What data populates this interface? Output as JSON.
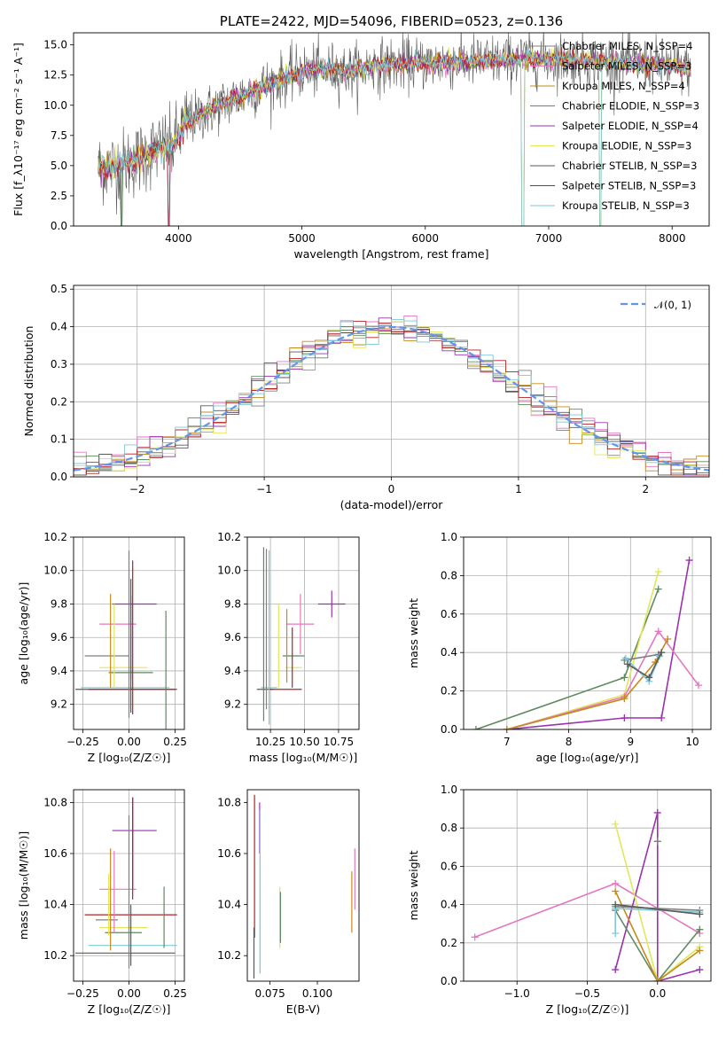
{
  "colors": {
    "series": [
      "#808080",
      "#e377c2",
      "#c58a1b",
      "#5f8a5f",
      "#9b30b0",
      "#e2e65a",
      "#5a5a5a",
      "#b22222",
      "#7ec8d6"
    ],
    "gauss": "#6495ed",
    "grid": "#b0b0b0"
  },
  "chart_data": [
    {
      "id": "spectrum",
      "type": "line",
      "title": "PLATE=2422, MJD=54096, FIBERID=0523, z=0.136",
      "xlabel": "wavelength [Angstrom, rest frame]",
      "ylabel": "Flux [f_λ10⁻¹⁷ erg cm⁻² s⁻¹ A⁻¹]",
      "xlim": [
        3150,
        8300
      ],
      "ylim": [
        0,
        16
      ],
      "xticks": [
        4000,
        5000,
        6000,
        7000,
        8000
      ],
      "xtick_labels": [
        "4000",
        "5000",
        "6000",
        "7000",
        "8000"
      ],
      "yticks": [
        0,
        2.5,
        5,
        7.5,
        10,
        12.5,
        15
      ],
      "ytick_labels": [
        "0.0",
        "2.5",
        "5.0",
        "7.5",
        "10.0",
        "12.5",
        "15.0"
      ],
      "grid": false,
      "legend_position": "top-right",
      "series_names": [
        "Chabrier MILES, N_SSP=4",
        "Salpeter MILES, N_SSP=3",
        "Kroupa MILES, N_SSP=4",
        "Chabrier ELODIE, N_SSP=3",
        "Salpeter ELODIE, N_SSP=4",
        "Kroupa ELODIE, N_SSP=3",
        "Chabrier STELIB, N_SSP=3",
        "Salpeter STELIB, N_SSP=3",
        "Kroupa STELIB, N_SSP=3"
      ],
      "continuum": {
        "x": [
          3350,
          3450,
          3550,
          3650,
          3750,
          3850,
          3950,
          4050,
          4200,
          4400,
          4600,
          4800,
          5000,
          5200,
          5400,
          5600,
          5800,
          6000,
          6300,
          6600,
          6900,
          7200,
          7500,
          7800,
          8000,
          8150
        ],
        "y": [
          4.8,
          4.9,
          5.1,
          5.4,
          6.0,
          6.5,
          6.5,
          8.5,
          9.3,
          10.3,
          11.2,
          12.0,
          12.8,
          13.0,
          12.8,
          13.3,
          13.4,
          13.5,
          13.6,
          13.7,
          13.9,
          13.8,
          13.6,
          13.4,
          13.2,
          13.0
        ]
      },
      "drops_x": [
        3540,
        3920,
        6790,
        7420
      ]
    },
    {
      "id": "residuals",
      "type": "line",
      "xlabel": "(data-model)/error",
      "ylabel": "Normed distribution",
      "xlim": [
        -2.5,
        2.5
      ],
      "ylim": [
        0,
        0.51
      ],
      "xticks": [
        -2,
        -1,
        0,
        1,
        2
      ],
      "xtick_labels": [
        "−2",
        "−1",
        "0",
        "1",
        "2"
      ],
      "yticks": [
        0,
        0.1,
        0.2,
        0.3,
        0.4,
        0.5
      ],
      "ytick_labels": [
        "0.0",
        "0.1",
        "0.2",
        "0.3",
        "0.4",
        "0.5"
      ],
      "grid": true,
      "legend_position": "top-right",
      "gauss_label": "𝒩(0, 1)",
      "bin_width": 0.1,
      "bin_start": -2.5
    },
    {
      "id": "age_vs_Z",
      "type": "scatter",
      "xlabel": "Z [log₁₀(Z/Z☉)]",
      "ylabel": "age  [log₁₀(age/yr)]",
      "xlim": [
        -0.3,
        0.3
      ],
      "ylim": [
        9.05,
        10.2
      ],
      "xticks": [
        -0.25,
        0,
        0.25
      ],
      "xtick_labels": [
        "−0.25",
        "0.00",
        "0.25"
      ],
      "yticks": [
        9.2,
        9.4,
        9.6,
        9.8,
        10.0,
        10.2
      ],
      "ytick_labels": [
        "9.2",
        "9.4",
        "9.6",
        "9.8",
        "10.0",
        "10.2"
      ],
      "grid": true,
      "points": [
        {
          "x": -0.02,
          "y": 9.29,
          "xerr": 0.27,
          "yerr": 0.0,
          "c": 6
        },
        {
          "x": 0.02,
          "y": 9.29,
          "xerr": 0.24,
          "yerr": 0.0,
          "c": 7
        },
        {
          "x": -0.02,
          "y": 9.3,
          "xerr": 0.24,
          "yerr": 0.0,
          "c": 8
        },
        {
          "x": -0.12,
          "y": 9.49,
          "xerr": 0.12,
          "yerr": 0.0,
          "c": 0
        },
        {
          "x": -0.03,
          "y": 9.42,
          "xerr": 0.13,
          "yerr": 0.0,
          "c": 5
        },
        {
          "x": 0.01,
          "y": 9.39,
          "xerr": 0.12,
          "yerr": 0.0,
          "c": 3
        },
        {
          "x": -0.06,
          "y": 9.68,
          "xerr": 0.1,
          "yerr": 0.0,
          "c": 1
        },
        {
          "x": 0.03,
          "y": 9.8,
          "xerr": 0.12,
          "yerr": 0.0,
          "c": 4
        },
        {
          "x": 0.01,
          "y": 9.6,
          "xerr": 0.0,
          "yerr": 0.25,
          "c": 4
        },
        {
          "x": 0.0,
          "y": 9.62,
          "xerr": 0.0,
          "yerr": 0.5,
          "c": 0
        },
        {
          "x": 0.02,
          "y": 9.6,
          "xerr": 0.0,
          "yerr": 0.46,
          "c": 7
        },
        {
          "x": 0.2,
          "y": 9.36,
          "xerr": 0.0,
          "yerr": 0.4,
          "c": 3
        },
        {
          "x": -0.1,
          "y": 9.58,
          "xerr": 0.0,
          "yerr": 0.28,
          "c": 2
        },
        {
          "x": -0.08,
          "y": 9.55,
          "xerr": 0.0,
          "yerr": 0.25,
          "c": 5
        },
        {
          "x": 0.01,
          "y": 9.55,
          "xerr": 0.0,
          "yerr": 0.4,
          "c": 6
        }
      ]
    },
    {
      "id": "age_vs_mass",
      "type": "scatter",
      "xlabel": "mass [log₁₀(M/M☉)]",
      "ylabel": "",
      "xlim": [
        10.08,
        10.9
      ],
      "ylim": [
        9.05,
        10.2
      ],
      "xticks": [
        10.25,
        10.5,
        10.75
      ],
      "xtick_labels": [
        "10.25",
        "10.50",
        "10.75"
      ],
      "yticks": [
        9.2,
        9.4,
        9.6,
        9.8,
        10.0,
        10.2
      ],
      "ytick_labels": [
        "9.2",
        "9.4",
        "9.6",
        "9.8",
        "10.0",
        "10.2"
      ],
      "grid": true,
      "points": [
        {
          "x": 10.21,
          "y": 9.29,
          "xerr": 0.06,
          "yerr": 0.0,
          "c": 6
        },
        {
          "x": 10.36,
          "y": 9.29,
          "xerr": 0.12,
          "yerr": 0.0,
          "c": 7
        },
        {
          "x": 10.24,
          "y": 9.3,
          "xerr": 0.06,
          "yerr": 0.0,
          "c": 8
        },
        {
          "x": 10.7,
          "y": 9.8,
          "xerr": 0.1,
          "yerr": 0.08,
          "c": 4
        },
        {
          "x": 10.47,
          "y": 9.68,
          "xerr": 0.1,
          "yerr": 0.18,
          "c": 1
        },
        {
          "x": 10.42,
          "y": 9.49,
          "xerr": 0.08,
          "yerr": 0.0,
          "c": 3
        },
        {
          "x": 10.42,
          "y": 9.42,
          "xerr": 0.06,
          "yerr": 0.0,
          "c": 5
        },
        {
          "x": 10.2,
          "y": 9.62,
          "xerr": 0.0,
          "yerr": 0.52,
          "c": 3
        },
        {
          "x": 10.22,
          "y": 9.65,
          "xerr": 0.0,
          "yerr": 0.48,
          "c": 0
        },
        {
          "x": 10.24,
          "y": 9.6,
          "xerr": 0.0,
          "yerr": 0.52,
          "c": 8
        },
        {
          "x": 10.31,
          "y": 9.55,
          "xerr": 0.0,
          "yerr": 0.25,
          "c": 5
        },
        {
          "x": 10.37,
          "y": 9.55,
          "xerr": 0.0,
          "yerr": 0.22,
          "c": 2
        },
        {
          "x": 10.41,
          "y": 9.48,
          "xerr": 0.0,
          "yerr": 0.18,
          "c": 7
        }
      ]
    },
    {
      "id": "weight_vs_age",
      "type": "line",
      "xlabel": "age  [log₁₀(age/yr)]",
      "ylabel": "mass weight",
      "xlim": [
        6.3,
        10.3
      ],
      "ylim": [
        0,
        1.0
      ],
      "xticks": [
        7,
        8,
        9,
        10
      ],
      "xtick_labels": [
        "7",
        "8",
        "9",
        "10"
      ],
      "yticks": [
        0,
        0.2,
        0.4,
        0.6,
        0.8,
        1.0
      ],
      "ytick_labels": [
        "0.0",
        "0.2",
        "0.4",
        "0.6",
        "0.8",
        "1.0"
      ],
      "grid": true,
      "series": [
        {
          "c": 3,
          "x": [
            6.5,
            8.9,
            9.45
          ],
          "y": [
            0.0,
            0.27,
            0.73
          ]
        },
        {
          "c": 4,
          "x": [
            7.0,
            8.9,
            9.5,
            9.95
          ],
          "y": [
            0.0,
            0.06,
            0.06,
            0.88
          ]
        },
        {
          "c": 5,
          "x": [
            7.0,
            8.9,
            9.45
          ],
          "y": [
            0.0,
            0.18,
            0.82
          ]
        },
        {
          "c": 1,
          "x": [
            7.0,
            8.9,
            9.45,
            10.1
          ],
          "y": [
            0.0,
            0.17,
            0.51,
            0.23
          ]
        },
        {
          "c": 2,
          "x": [
            7.0,
            8.9,
            9.4,
            9.6
          ],
          "y": [
            0.0,
            0.16,
            0.35,
            0.47
          ]
        },
        {
          "c": 0,
          "x": [
            8.9,
            9.45
          ],
          "y": [
            0.36,
            0.39
          ]
        },
        {
          "c": 8,
          "x": [
            8.92,
            9.3,
            9.47
          ],
          "y": [
            0.37,
            0.25,
            0.38
          ]
        },
        {
          "c": 6,
          "x": [
            8.95,
            9.3,
            9.5
          ],
          "y": [
            0.34,
            0.27,
            0.4
          ]
        }
      ]
    },
    {
      "id": "mass_vs_Z",
      "type": "scatter",
      "xlabel": "Z [log₁₀(Z/Z☉)]",
      "ylabel": "mass [log₁₀(M/M☉)]",
      "xlim": [
        -0.3,
        0.3
      ],
      "ylim": [
        10.1,
        10.85
      ],
      "xticks": [
        -0.25,
        0,
        0.25
      ],
      "xtick_labels": [
        "−0.25",
        "0.00",
        "0.25"
      ],
      "yticks": [
        10.2,
        10.4,
        10.6,
        10.8
      ],
      "ytick_labels": [
        "10.2",
        "10.4",
        "10.6",
        "10.8"
      ],
      "grid": true,
      "points": [
        {
          "x": -0.02,
          "y": 10.21,
          "xerr": 0.27,
          "yerr": 0.0,
          "c": 6
        },
        {
          "x": 0.02,
          "y": 10.24,
          "xerr": 0.24,
          "yerr": 0.0,
          "c": 8
        },
        {
          "x": 0.01,
          "y": 10.36,
          "xerr": 0.25,
          "yerr": 0.0,
          "c": 7
        },
        {
          "x": -0.12,
          "y": 10.34,
          "xerr": 0.06,
          "yerr": 0.0,
          "c": 0
        },
        {
          "x": -0.03,
          "y": 10.31,
          "xerr": 0.13,
          "yerr": 0.0,
          "c": 5
        },
        {
          "x": -0.03,
          "y": 10.29,
          "xerr": 0.1,
          "yerr": 0.0,
          "c": 3
        },
        {
          "x": -0.06,
          "y": 10.46,
          "xerr": 0.1,
          "yerr": 0.0,
          "c": 1
        },
        {
          "x": 0.03,
          "y": 10.69,
          "xerr": 0.12,
          "yerr": 0.0,
          "c": 4
        },
        {
          "x": 0.02,
          "y": 10.64,
          "xerr": 0.0,
          "yerr": 0.18,
          "c": 4
        },
        {
          "x": 0.02,
          "y": 10.62,
          "xerr": 0.0,
          "yerr": 0.2,
          "c": 7
        },
        {
          "x": 0.0,
          "y": 10.45,
          "xerr": 0.0,
          "yerr": 0.3,
          "c": 0
        },
        {
          "x": 0.19,
          "y": 10.35,
          "xerr": 0.0,
          "yerr": 0.12,
          "c": 3
        },
        {
          "x": -0.1,
          "y": 10.42,
          "xerr": 0.0,
          "yerr": 0.2,
          "c": 2
        },
        {
          "x": -0.08,
          "y": 10.45,
          "xerr": 0.0,
          "yerr": 0.16,
          "c": 1
        },
        {
          "x": -0.11,
          "y": 10.4,
          "xerr": 0.0,
          "yerr": 0.12,
          "c": 5
        },
        {
          "x": 0.01,
          "y": 10.28,
          "xerr": 0.0,
          "yerr": 0.12,
          "c": 6
        }
      ]
    },
    {
      "id": "mass_vs_EBV",
      "type": "scatter",
      "xlabel": "E(B-V)",
      "ylabel": "",
      "xlim": [
        0.063,
        0.122
      ],
      "ylim": [
        10.1,
        10.85
      ],
      "xticks": [
        0.075,
        0.1
      ],
      "xtick_labels": [
        "0.075",
        "0.100"
      ],
      "yticks": [
        10.2,
        10.4,
        10.6,
        10.8
      ],
      "ytick_labels": [
        "10.2",
        "10.4",
        "10.6",
        "10.8"
      ],
      "grid": false,
      "points": [
        {
          "x": 0.0668,
          "y": 10.55,
          "xerr": 0.0,
          "yerr": 0.28,
          "c": 7
        },
        {
          "x": 0.0665,
          "y": 10.21,
          "xerr": 0.0,
          "yerr": 0.1,
          "c": 6
        },
        {
          "x": 0.0695,
          "y": 10.7,
          "xerr": 0.0,
          "yerr": 0.1,
          "c": 4
        },
        {
          "x": 0.0697,
          "y": 10.45,
          "xerr": 0.0,
          "yerr": 0.32,
          "c": 8
        },
        {
          "x": 0.0802,
          "y": 10.35,
          "xerr": 0.0,
          "yerr": 0.12,
          "c": 5
        },
        {
          "x": 0.0805,
          "y": 10.35,
          "xerr": 0.0,
          "yerr": 0.1,
          "c": 3
        },
        {
          "x": 0.1182,
          "y": 10.41,
          "xerr": 0.0,
          "yerr": 0.12,
          "c": 2
        },
        {
          "x": 0.1198,
          "y": 10.5,
          "xerr": 0.0,
          "yerr": 0.12,
          "c": 1
        }
      ]
    },
    {
      "id": "weight_vs_Z",
      "type": "line",
      "xlabel": "Z [log₁₀(Z/Z☉)]",
      "ylabel": "mass weight",
      "xlim": [
        -1.38,
        0.38
      ],
      "ylim": [
        0,
        1.0
      ],
      "xticks": [
        -1.0,
        -0.5,
        0.0
      ],
      "xtick_labels": [
        "−1.0",
        "−0.5",
        "0.0"
      ],
      "yticks": [
        0,
        0.2,
        0.4,
        0.6,
        0.8,
        1.0
      ],
      "ytick_labels": [
        "0.0",
        "0.2",
        "0.4",
        "0.6",
        "0.8",
        "1.0"
      ],
      "grid": true,
      "series": [
        {
          "c": 1,
          "x": [
            -1.3,
            -0.3,
            0.3
          ],
          "y": [
            0.23,
            0.51,
            0.25
          ]
        },
        {
          "c": 4,
          "x": [
            -0.3,
            0.0,
            0.0,
            0.3
          ],
          "y": [
            0.06,
            0.88,
            0.0,
            0.06
          ]
        },
        {
          "c": 5,
          "x": [
            -0.3,
            0.0,
            0.3
          ],
          "y": [
            0.82,
            0.0,
            0.18
          ]
        },
        {
          "c": 3,
          "x": [
            -0.3,
            0.0,
            0.3
          ],
          "y": [
            0.37,
            0.0,
            0.27
          ]
        },
        {
          "c": 2,
          "x": [
            -0.3,
            0.0,
            0.3
          ],
          "y": [
            0.47,
            0.0,
            0.16
          ]
        },
        {
          "c": 0,
          "x": [
            -0.3,
            0.3
          ],
          "y": [
            0.39,
            0.37
          ]
        },
        {
          "c": 8,
          "x": [
            -0.3,
            -0.3,
            0.3
          ],
          "y": [
            0.25,
            0.38,
            0.36
          ]
        },
        {
          "c": 6,
          "x": [
            -0.3,
            0.3
          ],
          "y": [
            0.4,
            0.35
          ]
        },
        {
          "c": 0,
          "x": [
            0.0,
            0.0
          ],
          "y": [
            0.73,
            0.73
          ]
        }
      ]
    }
  ]
}
